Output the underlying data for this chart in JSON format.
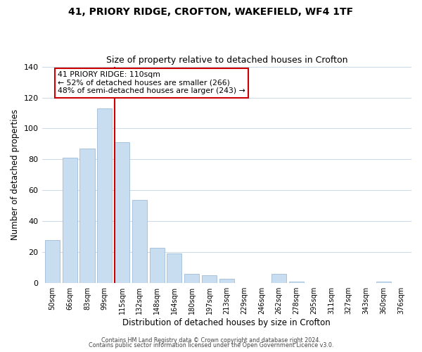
{
  "title": "41, PRIORY RIDGE, CROFTON, WAKEFIELD, WF4 1TF",
  "subtitle": "Size of property relative to detached houses in Crofton",
  "xlabel": "Distribution of detached houses by size in Crofton",
  "ylabel": "Number of detached properties",
  "bar_labels": [
    "50sqm",
    "66sqm",
    "83sqm",
    "99sqm",
    "115sqm",
    "132sqm",
    "148sqm",
    "164sqm",
    "180sqm",
    "197sqm",
    "213sqm",
    "229sqm",
    "246sqm",
    "262sqm",
    "278sqm",
    "295sqm",
    "311sqm",
    "327sqm",
    "343sqm",
    "360sqm",
    "376sqm"
  ],
  "bar_values": [
    28,
    81,
    87,
    113,
    91,
    54,
    23,
    19,
    6,
    5,
    3,
    0,
    0,
    6,
    1,
    0,
    0,
    0,
    0,
    1,
    0
  ],
  "bar_color": "#c9ddf0",
  "bar_edge_color": "#a0bcd8",
  "vline_x": 4,
  "vline_color": "#cc0000",
  "annotation_title": "41 PRIORY RIDGE: 110sqm",
  "annotation_line1": "← 52% of detached houses are smaller (266)",
  "annotation_line2": "48% of semi-detached houses are larger (243) →",
  "annotation_box_edgecolor": "#cc0000",
  "ylim": [
    0,
    140
  ],
  "yticks": [
    0,
    20,
    40,
    60,
    80,
    100,
    120,
    140
  ],
  "footer1": "Contains HM Land Registry data © Crown copyright and database right 2024.",
  "footer2": "Contains public sector information licensed under the Open Government Licence v3.0.",
  "background_color": "#ffffff",
  "grid_color": "#c8d8e8"
}
